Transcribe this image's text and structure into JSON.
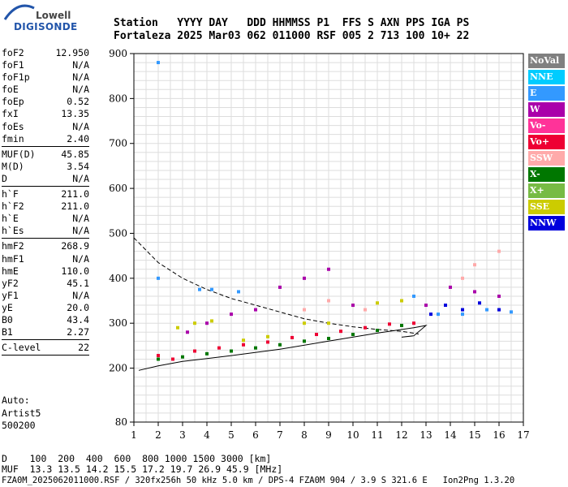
{
  "logo": {
    "line1": "Lowell",
    "line2": "DIGISONDE"
  },
  "header": {
    "row1": "Station   YYYY DAY   DDD HHMMSS P1  FFS S AXN PPS IGA PS",
    "row2": "Fortaleza 2025 Mar03 062 011000 RSF 005 2 713 100 10+ 22"
  },
  "params": [
    [
      {
        "k": "foF2",
        "v": "12.950"
      },
      {
        "k": "foF1",
        "v": "N/A"
      },
      {
        "k": "foF1p",
        "v": "N/A"
      },
      {
        "k": "foE",
        "v": "N/A"
      },
      {
        "k": "foEp",
        "v": "0.52"
      },
      {
        "k": "fxI",
        "v": "13.35"
      },
      {
        "k": "foEs",
        "v": "N/A"
      },
      {
        "k": "fmin",
        "v": "2.40"
      }
    ],
    [
      {
        "k": "MUF(D)",
        "v": "45.85"
      },
      {
        "k": "M(D)",
        "v": "3.54"
      },
      {
        "k": "D",
        "v": "N/A"
      }
    ],
    [
      {
        "k": "h`F",
        "v": "211.0"
      },
      {
        "k": "h`F2",
        "v": "211.0"
      },
      {
        "k": "h`E",
        "v": "N/A"
      },
      {
        "k": "h`Es",
        "v": "N/A"
      }
    ],
    [
      {
        "k": "hmF2",
        "v": "268.9"
      },
      {
        "k": "hmF1",
        "v": "N/A"
      },
      {
        "k": "hmE",
        "v": "110.0"
      },
      {
        "k": "yF2",
        "v": "45.1"
      },
      {
        "k": "yF1",
        "v": "N/A"
      },
      {
        "k": "yE",
        "v": "20.0"
      },
      {
        "k": "B0",
        "v": "43.4"
      },
      {
        "k": "B1",
        "v": "2.27"
      }
    ],
    [
      {
        "k": "C-level",
        "v": "22"
      }
    ]
  ],
  "auto": {
    "line1": "Auto:",
    "line2": "Artist5",
    "line3": "500200"
  },
  "legend": [
    {
      "label": "NoVal",
      "color": "#808080"
    },
    {
      "label": "NNE",
      "color": "#00ccff"
    },
    {
      "label": "E",
      "color": "#3399ff"
    },
    {
      "label": "W",
      "color": "#aa00aa"
    },
    {
      "label": "Vo-",
      "color": "#ff3399"
    },
    {
      "label": "Vo+",
      "color": "#ee0033"
    },
    {
      "label": "SSW",
      "color": "#ffaaaa"
    },
    {
      "label": "X-",
      "color": "#007700"
    },
    {
      "label": "X+",
      "color": "#77bb44"
    },
    {
      "label": "SSE",
      "color": "#cccc00"
    },
    {
      "label": "NNW",
      "color": "#0000dd"
    }
  ],
  "bottom": {
    "line1": "D    100  200  400  600  800 1000 1500 3000 [km]",
    "line2": "MUF  13.3 13.5 14.2 15.5 17.2 19.7 26.9 45.9 [MHz]",
    "line3": "FZA0M_2025062011000.RSF / 320fx256h 50 kHz 5.0 km / DPS-4 FZA0M 904 / 3.9 S 321.6 E   Ion2Png 1.3.20"
  },
  "chart_data": {
    "type": "scatter",
    "xlim": [
      1,
      17
    ],
    "ylim": [
      80,
      900
    ],
    "x_ticks": [
      1,
      2,
      3,
      4,
      5,
      6,
      7,
      8,
      9,
      10,
      11,
      12,
      13,
      14,
      15,
      16,
      17
    ],
    "y_ticks": [
      80,
      200,
      300,
      400,
      500,
      600,
      700,
      800,
      900
    ],
    "series": [
      {
        "name": "X-",
        "values": [
          [
            2.0,
            220
          ],
          [
            3.0,
            225
          ],
          [
            4.0,
            232
          ],
          [
            5.0,
            238
          ],
          [
            6.0,
            245
          ],
          [
            7.0,
            252
          ],
          [
            8.0,
            260
          ],
          [
            9.0,
            266
          ],
          [
            10.0,
            275
          ],
          [
            11.0,
            284
          ],
          [
            12.0,
            295
          ]
        ]
      },
      {
        "name": "Vo+",
        "values": [
          [
            2.0,
            228
          ],
          [
            2.6,
            220
          ],
          [
            3.5,
            238
          ],
          [
            4.5,
            245
          ],
          [
            5.5,
            252
          ],
          [
            6.5,
            258
          ],
          [
            7.5,
            268
          ],
          [
            8.5,
            275
          ],
          [
            9.5,
            282
          ],
          [
            10.5,
            290
          ],
          [
            11.5,
            298
          ],
          [
            12.5,
            300
          ]
        ]
      },
      {
        "name": "SSE",
        "values": [
          [
            2.8,
            290
          ],
          [
            3.5,
            300
          ],
          [
            4.2,
            305
          ],
          [
            5.5,
            262
          ],
          [
            6.5,
            270
          ],
          [
            8.0,
            300
          ],
          [
            9.0,
            300
          ],
          [
            10.0,
            340
          ],
          [
            11.0,
            345
          ],
          [
            12.0,
            350
          ]
        ]
      },
      {
        "name": "W",
        "values": [
          [
            3.2,
            280
          ],
          [
            4.0,
            300
          ],
          [
            5.0,
            320
          ],
          [
            6.0,
            330
          ],
          [
            7.0,
            380
          ],
          [
            8.0,
            400
          ],
          [
            9.0,
            420
          ],
          [
            10.0,
            340
          ],
          [
            13.0,
            340
          ],
          [
            14.0,
            380
          ],
          [
            15.0,
            370
          ],
          [
            16.0,
            360
          ]
        ]
      },
      {
        "name": "NNW",
        "values": [
          [
            13.2,
            320
          ],
          [
            13.8,
            340
          ],
          [
            14.5,
            330
          ],
          [
            15.2,
            345
          ],
          [
            16.0,
            330
          ]
        ]
      },
      {
        "name": "E",
        "values": [
          [
            2.0,
            880
          ],
          [
            2.0,
            400
          ],
          [
            3.7,
            375
          ],
          [
            4.2,
            375
          ],
          [
            5.3,
            370
          ],
          [
            12.5,
            360
          ],
          [
            13.5,
            320
          ],
          [
            14.5,
            320
          ],
          [
            15.5,
            330
          ],
          [
            16.5,
            325
          ]
        ]
      },
      {
        "name": "SSW",
        "values": [
          [
            8.0,
            330
          ],
          [
            9.0,
            350
          ],
          [
            10.5,
            330
          ],
          [
            14.5,
            400
          ],
          [
            15.0,
            430
          ],
          [
            16.0,
            460
          ]
        ]
      }
    ],
    "curves": [
      {
        "name": "profile",
        "style": "solid",
        "points": [
          [
            1.2,
            195
          ],
          [
            2,
            205
          ],
          [
            3,
            215
          ],
          [
            5,
            228
          ],
          [
            7,
            242
          ],
          [
            9,
            260
          ],
          [
            11,
            278
          ],
          [
            12.5,
            290
          ],
          [
            13,
            295
          ],
          [
            12.5,
            272
          ],
          [
            12,
            269
          ]
        ]
      },
      {
        "name": "virtual",
        "style": "dashed",
        "points": [
          [
            1,
            490
          ],
          [
            2,
            435
          ],
          [
            3,
            400
          ],
          [
            4,
            375
          ],
          [
            5,
            355
          ],
          [
            6,
            340
          ],
          [
            7,
            325
          ],
          [
            8,
            310
          ],
          [
            9,
            300
          ],
          [
            10,
            292
          ],
          [
            11,
            286
          ],
          [
            12,
            282
          ],
          [
            12.7,
            276
          ]
        ]
      }
    ]
  }
}
